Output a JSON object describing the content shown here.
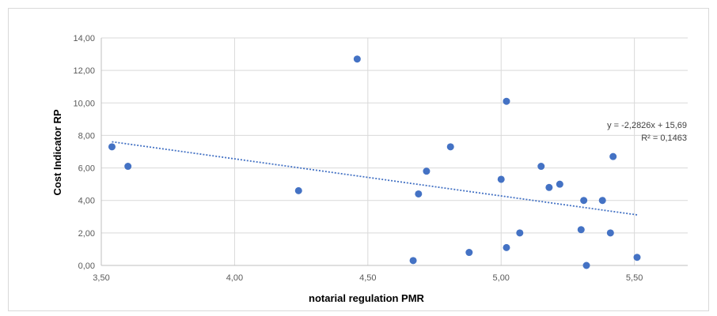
{
  "chart_data": {
    "type": "scatter",
    "title": "",
    "xlabel": "notarial regulation PMR",
    "ylabel": "Cost Indicator RP",
    "xlim": [
      3.5,
      5.7
    ],
    "ylim": [
      0,
      14
    ],
    "x_ticks": [
      "3,50",
      "4,00",
      "4,50",
      "5,00",
      "5,50"
    ],
    "y_ticks": [
      "0,00",
      "2,00",
      "4,00",
      "6,00",
      "8,00",
      "10,00",
      "12,00",
      "14,00"
    ],
    "grid": true,
    "legend": "none",
    "marker_color": "#4472C4",
    "points": [
      {
        "x": 3.54,
        "y": 7.3
      },
      {
        "x": 3.6,
        "y": 6.1
      },
      {
        "x": 4.24,
        "y": 4.6
      },
      {
        "x": 4.46,
        "y": 12.7
      },
      {
        "x": 4.67,
        "y": 0.3
      },
      {
        "x": 4.69,
        "y": 4.4
      },
      {
        "x": 4.72,
        "y": 5.8
      },
      {
        "x": 4.81,
        "y": 7.3
      },
      {
        "x": 4.88,
        "y": 0.8
      },
      {
        "x": 5.0,
        "y": 5.3
      },
      {
        "x": 5.02,
        "y": 1.1
      },
      {
        "x": 5.02,
        "y": 10.1
      },
      {
        "x": 5.07,
        "y": 2.0
      },
      {
        "x": 5.15,
        "y": 6.1
      },
      {
        "x": 5.18,
        "y": 4.8
      },
      {
        "x": 5.22,
        "y": 5.0
      },
      {
        "x": 5.3,
        "y": 2.2
      },
      {
        "x": 5.31,
        "y": 4.0
      },
      {
        "x": 5.32,
        "y": 0.0
      },
      {
        "x": 5.38,
        "y": 4.0
      },
      {
        "x": 5.41,
        "y": 2.0
      },
      {
        "x": 5.42,
        "y": 6.7
      },
      {
        "x": 5.51,
        "y": 0.5
      }
    ],
    "trendline": {
      "type": "linear",
      "slope": -2.2826,
      "intercept": 15.69,
      "x_range": [
        3.54,
        5.51
      ],
      "equation_label": "y = -2,2826x + 15,69",
      "r2_label": "R² = 0,1463",
      "color": "#4472C4"
    }
  }
}
